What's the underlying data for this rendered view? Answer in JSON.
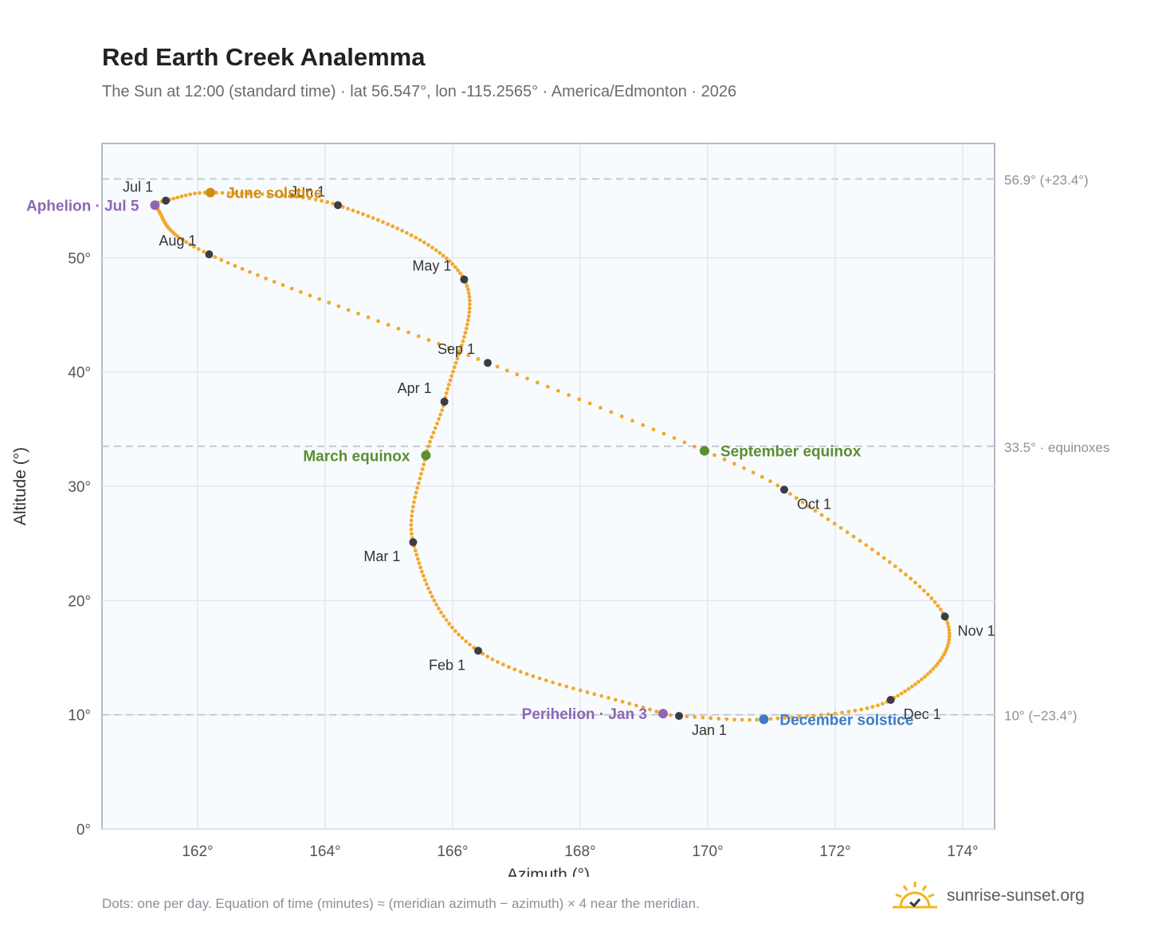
{
  "header": {
    "title": "Red Earth Creek Analemma",
    "subtitle": "The Sun at 12:00 (standard time) · lat 56.547°, lon -115.2565° · America/Edmonton · 2026"
  },
  "footer": {
    "note": "Dots: one per day. Equation of time (minutes) ≈ (meridian azimuth − azimuth) × 4 near the meridian.",
    "brand": "sunrise-sunset.org"
  },
  "colors": {
    "curve": "#f2a92c",
    "month_marker": "#3a3d48",
    "solstice_june": "#d28c16",
    "solstice_december": "#3a7cc7",
    "equinox": "#5a8f32",
    "apsis": "#8e67b3",
    "reference_line": "#c2c7d0",
    "plot_bg": "#f8fbfd",
    "grid": "#e3e8ee"
  },
  "chart_data": {
    "type": "scatter",
    "xlabel": "Azimuth (°)",
    "ylabel": "Altitude (°)",
    "xlim": [
      160.5,
      174.5
    ],
    "ylim": [
      0,
      60
    ],
    "xticks": [
      162,
      164,
      166,
      168,
      170,
      172,
      174
    ],
    "yticks": [
      0,
      10,
      20,
      30,
      40,
      50
    ],
    "tick_suffix": "°",
    "grid": true,
    "series": [
      {
        "points_per_day": true,
        "anchors": [
          {
            "day": 1,
            "az": 169.55,
            "alt": 9.9
          },
          {
            "day": 3,
            "az": 169.3,
            "alt": 10.1
          },
          {
            "day": 32,
            "az": 166.4,
            "alt": 15.6
          },
          {
            "day": 60,
            "az": 165.38,
            "alt": 25.1
          },
          {
            "day": 79,
            "az": 165.58,
            "alt": 32.7
          },
          {
            "day": 91,
            "az": 165.87,
            "alt": 37.4
          },
          {
            "day": 121,
            "az": 166.18,
            "alt": 48.1
          },
          {
            "day": 152,
            "az": 164.2,
            "alt": 54.6
          },
          {
            "day": 172,
            "az": 162.2,
            "alt": 55.7
          },
          {
            "day": 182,
            "az": 161.5,
            "alt": 55.0
          },
          {
            "day": 186,
            "az": 161.33,
            "alt": 54.6
          },
          {
            "day": 213,
            "az": 162.18,
            "alt": 50.3
          },
          {
            "day": 244,
            "az": 166.55,
            "alt": 40.8
          },
          {
            "day": 265,
            "az": 169.95,
            "alt": 33.1
          },
          {
            "day": 274,
            "az": 171.2,
            "alt": 29.7
          },
          {
            "day": 305,
            "az": 173.72,
            "alt": 18.6
          },
          {
            "day": 335,
            "az": 172.87,
            "alt": 11.3
          },
          {
            "day": 355,
            "az": 170.88,
            "alt": 9.6
          },
          {
            "day": 366,
            "az": 169.55,
            "alt": 9.9
          }
        ]
      }
    ],
    "month_markers": [
      {
        "label": "Jan 1",
        "az": 169.55,
        "alt": 9.9,
        "label_pos": "below-right"
      },
      {
        "label": "Feb 1",
        "az": 166.4,
        "alt": 15.6,
        "label_pos": "below-left"
      },
      {
        "label": "Mar 1",
        "az": 165.38,
        "alt": 25.1,
        "label_pos": "below-left"
      },
      {
        "label": "Apr 1",
        "az": 165.87,
        "alt": 37.4,
        "label_pos": "above-left"
      },
      {
        "label": "May 1",
        "az": 166.18,
        "alt": 48.1,
        "label_pos": "above-left"
      },
      {
        "label": "Jun 1",
        "az": 164.2,
        "alt": 54.6,
        "label_pos": "above-left"
      },
      {
        "label": "Jul 1",
        "az": 161.5,
        "alt": 55.0,
        "label_pos": "above-left"
      },
      {
        "label": "Aug 1",
        "az": 162.18,
        "alt": 50.3,
        "label_pos": "above-left"
      },
      {
        "label": "Sep 1",
        "az": 166.55,
        "alt": 40.8,
        "label_pos": "above-left"
      },
      {
        "label": "Oct 1",
        "az": 171.2,
        "alt": 29.7,
        "label_pos": "below-right"
      },
      {
        "label": "Nov 1",
        "az": 173.72,
        "alt": 18.6,
        "label_pos": "below-right"
      },
      {
        "label": "Dec 1",
        "az": 172.87,
        "alt": 11.3,
        "label_pos": "below-right"
      }
    ],
    "events": [
      {
        "label": "June solstice",
        "az": 162.2,
        "alt": 55.7,
        "color_key": "solstice_june",
        "label_side": "right"
      },
      {
        "label": "December solstice",
        "az": 170.88,
        "alt": 9.6,
        "color_key": "solstice_december",
        "label_side": "right"
      },
      {
        "label": "March equinox",
        "az": 165.58,
        "alt": 32.7,
        "color_key": "equinox",
        "label_side": "left"
      },
      {
        "label": "September equinox",
        "az": 169.95,
        "alt": 33.1,
        "color_key": "equinox",
        "label_side": "right"
      },
      {
        "label": "Aphelion · Jul 5",
        "az": 161.33,
        "alt": 54.6,
        "color_key": "apsis",
        "label_side": "left"
      },
      {
        "label": "Perihelion · Jan 3",
        "az": 169.3,
        "alt": 10.1,
        "color_key": "apsis",
        "label_side": "left"
      }
    ],
    "reference_lines": [
      {
        "alt": 56.9,
        "label": "56.9° (+23.4°)"
      },
      {
        "alt": 33.5,
        "label": "33.5° · equinoxes"
      },
      {
        "alt": 10.0,
        "label": "10° (−23.4°)"
      }
    ]
  }
}
